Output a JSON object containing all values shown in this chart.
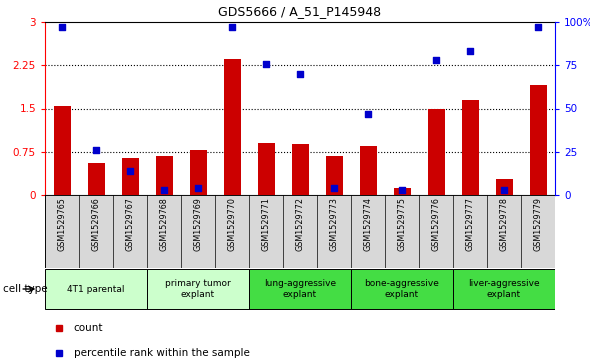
{
  "title": "GDS5666 / A_51_P145948",
  "samples": [
    "GSM1529765",
    "GSM1529766",
    "GSM1529767",
    "GSM1529768",
    "GSM1529769",
    "GSM1529770",
    "GSM1529771",
    "GSM1529772",
    "GSM1529773",
    "GSM1529774",
    "GSM1529775",
    "GSM1529776",
    "GSM1529777",
    "GSM1529778",
    "GSM1529779"
  ],
  "counts": [
    1.55,
    0.55,
    0.65,
    0.68,
    0.78,
    2.35,
    0.9,
    0.88,
    0.68,
    0.85,
    0.13,
    1.5,
    1.65,
    0.28,
    1.9
  ],
  "percentile_ranks": [
    97,
    26,
    14,
    3,
    4,
    97,
    76,
    70,
    4,
    47,
    3,
    78,
    83,
    3,
    97
  ],
  "bar_color": "#cc0000",
  "dot_color": "#0000cc",
  "ylim_left": [
    0,
    3
  ],
  "ylim_right": [
    0,
    100
  ],
  "yticks_left": [
    0,
    0.75,
    1.5,
    2.25,
    3
  ],
  "ytick_labels_left": [
    "0",
    "0.75",
    "1.5",
    "2.25",
    "3"
  ],
  "ytick_labels_right": [
    "0",
    "25",
    "50",
    "75",
    "100%"
  ],
  "cell_types": [
    {
      "label": "4T1 parental",
      "start": 0,
      "end": 2,
      "color": "#ccffcc"
    },
    {
      "label": "primary tumor\nexplant",
      "start": 3,
      "end": 5,
      "color": "#ccffcc"
    },
    {
      "label": "lung-aggressive\nexplant",
      "start": 6,
      "end": 8,
      "color": "#44dd44"
    },
    {
      "label": "bone-aggressive\nexplant",
      "start": 9,
      "end": 11,
      "color": "#44dd44"
    },
    {
      "label": "liver-aggressive\nexplant",
      "start": 12,
      "end": 14,
      "color": "#44dd44"
    }
  ],
  "legend_count_label": "count",
  "legend_pct_label": "percentile rank within the sample",
  "cell_type_label": "cell type",
  "xtick_bg": "#d8d8d8"
}
